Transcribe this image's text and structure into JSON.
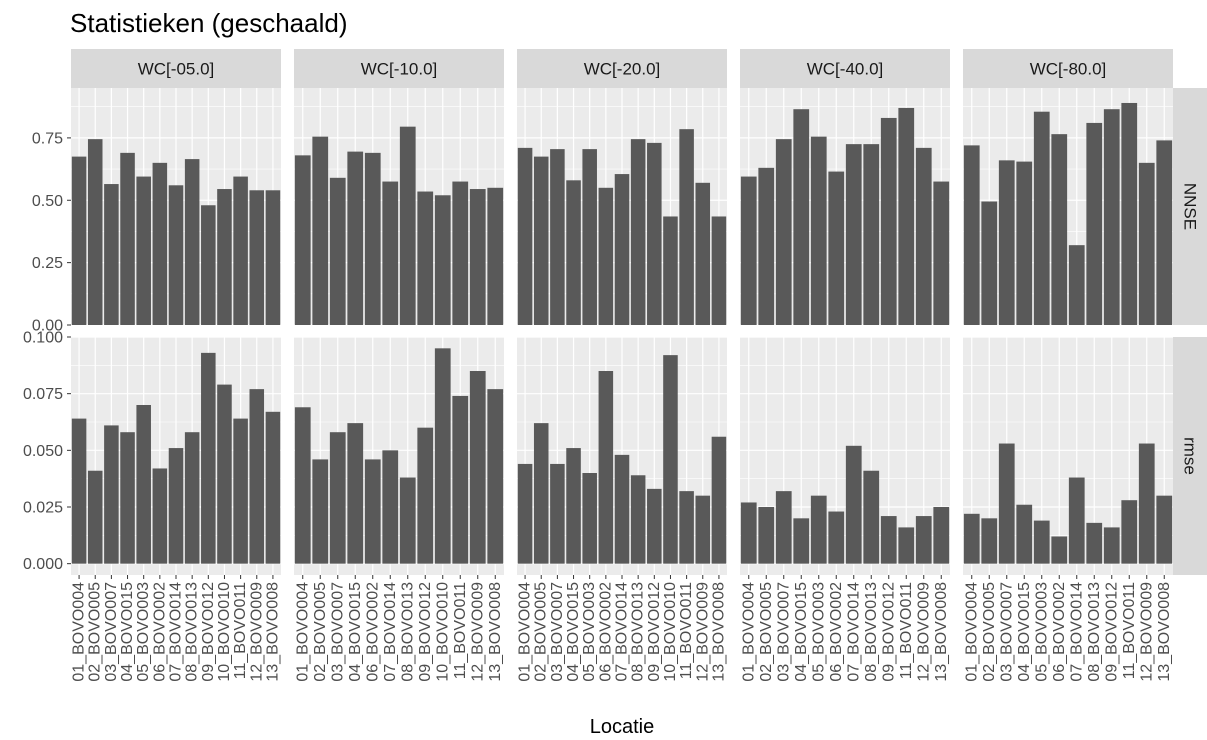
{
  "chart_data": {
    "type": "bar",
    "title": "Statistieken (geschaald)",
    "xlabel": "Locatie",
    "ylabel": "",
    "bar_color": "#595959",
    "panel_background": "#ebebeb",
    "strip_background": "#d9d9d9",
    "grid": true,
    "facet_cols": [
      "WC[-05.0]",
      "WC[-10.0]",
      "WC[-20.0]",
      "WC[-40.0]",
      "WC[-80.0]"
    ],
    "facet_rows": [
      {
        "name": "NNSE",
        "ylim": [
          0,
          0.95
        ],
        "ticks": [
          0,
          0.25,
          0.5,
          0.75
        ],
        "tick_labels": [
          "0.00",
          "0.25",
          "0.50",
          "0.75"
        ]
      },
      {
        "name": "rmse",
        "ylim": [
          -0.005,
          0.1
        ],
        "ticks": [
          0,
          0.025,
          0.05,
          0.075,
          0.1
        ],
        "tick_labels": [
          "0.000",
          "0.025",
          "0.050",
          "0.075",
          "0.100"
        ]
      }
    ],
    "categories": [
      [
        "01_BOVO004",
        "02_BOVO005",
        "03_BOVO007",
        "04_BOVO015",
        "05_BOVO003",
        "06_BOVO002",
        "07_BOVO014",
        "08_BOVO013",
        "09_BOVO012",
        "10_BOVO010",
        "11_BOVO011",
        "12_BOVO009",
        "13_BOVO008"
      ],
      [
        "01_BOVO004",
        "02_BOVO005",
        "03_BOVO007",
        "04_BOVO015",
        "06_BOVO002",
        "07_BOVO014",
        "08_BOVO013",
        "09_BOVO012",
        "10_BOVO010",
        "11_BOVO011",
        "12_BOVO009",
        "13_BOVO008"
      ],
      [
        "01_BOVO004",
        "02_BOVO005",
        "03_BOVO007",
        "04_BOVO015",
        "05_BOVO003",
        "06_BOVO002",
        "07_BOVO014",
        "08_BOVO013",
        "09_BOVO012",
        "10_BOVO010",
        "11_BOVO011",
        "12_BOVO009",
        "13_BOVO008"
      ],
      [
        "01_BOVO004",
        "02_BOVO005",
        "03_BOVO007",
        "04_BOVO015",
        "05_BOVO003",
        "06_BOVO002",
        "07_BOVO014",
        "08_BOVO013",
        "09_BOVO012",
        "11_BOVO011",
        "12_BOVO009",
        "13_BOVO008"
      ],
      [
        "01_BOVO004",
        "02_BOVO005",
        "03_BOVO007",
        "04_BOVO015",
        "05_BOVO003",
        "06_BOVO002",
        "07_BOVO014",
        "08_BOVO013",
        "09_BOVO012",
        "11_BOVO011",
        "12_BOVO009",
        "13_BOVO008"
      ]
    ],
    "values": [
      [
        [
          0.675,
          0.745,
          0.565,
          0.69,
          0.595,
          0.65,
          0.56,
          0.665,
          0.48,
          0.545,
          0.595,
          0.54,
          0.54
        ],
        [
          0.68,
          0.755,
          0.59,
          0.695,
          0.69,
          0.575,
          0.795,
          0.535,
          0.52,
          0.575,
          0.545,
          0.55
        ],
        [
          0.71,
          0.675,
          0.705,
          0.58,
          0.705,
          0.55,
          0.605,
          0.745,
          0.73,
          0.435,
          0.785,
          0.57,
          0.435
        ],
        [
          0.595,
          0.63,
          0.745,
          0.865,
          0.755,
          0.615,
          0.725,
          0.725,
          0.83,
          0.87,
          0.71,
          0.575
        ],
        [
          0.72,
          0.495,
          0.66,
          0.655,
          0.855,
          0.765,
          0.32,
          0.81,
          0.865,
          0.89,
          0.65,
          0.74
        ]
      ],
      [
        [
          0.064,
          0.041,
          0.061,
          0.058,
          0.07,
          0.042,
          0.051,
          0.058,
          0.093,
          0.079,
          0.064,
          0.077,
          0.067
        ],
        [
          0.069,
          0.046,
          0.058,
          0.062,
          0.046,
          0.05,
          0.038,
          0.06,
          0.095,
          0.074,
          0.085,
          0.077
        ],
        [
          0.044,
          0.062,
          0.044,
          0.051,
          0.04,
          0.085,
          0.048,
          0.039,
          0.033,
          0.092,
          0.032,
          0.03,
          0.056
        ],
        [
          0.027,
          0.025,
          0.032,
          0.02,
          0.03,
          0.023,
          0.052,
          0.041,
          0.021,
          0.016,
          0.021,
          0.025
        ],
        [
          0.022,
          0.02,
          0.053,
          0.026,
          0.019,
          0.012,
          0.038,
          0.018,
          0.016,
          0.028,
          0.053,
          0.03
        ]
      ]
    ]
  }
}
